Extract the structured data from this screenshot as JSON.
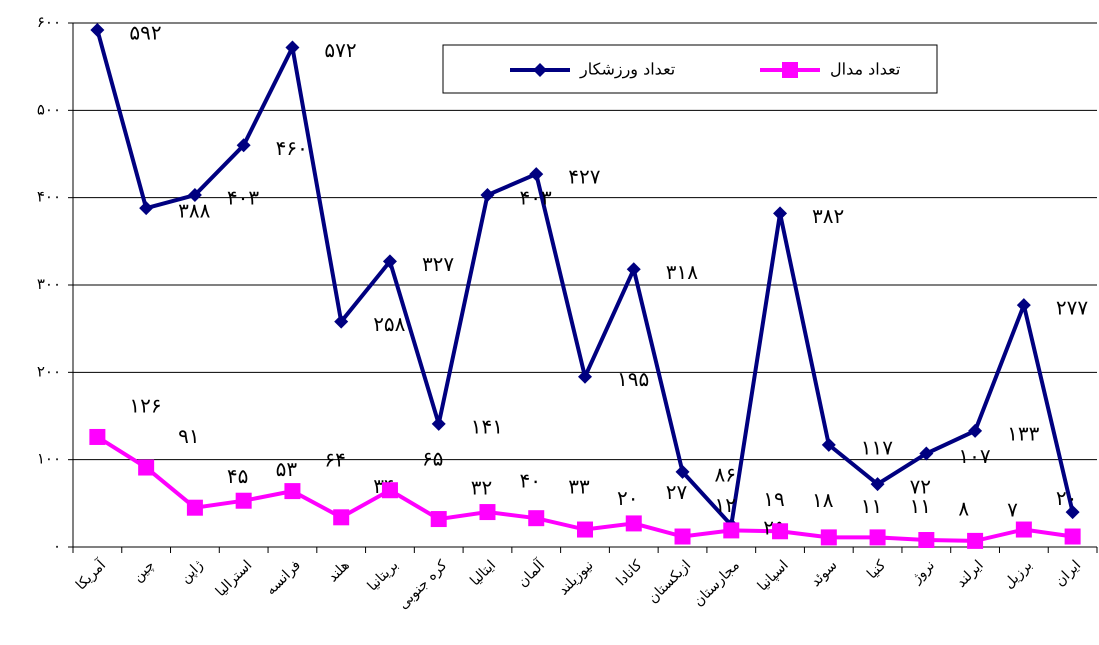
{
  "chart_data": {
    "type": "line",
    "categories": [
      "آمریکا",
      "چین",
      "ژاپن",
      "استرالیا",
      "فرانسه",
      "هلند",
      "بریتانیا",
      "کره جنوبی",
      "ایتالیا",
      "آلمان",
      "نیوزیلند",
      "کانادا",
      "ازبکستان",
      "مجارستان",
      "اسپانیا",
      "سوئد",
      "کنیا",
      "نروژ",
      "ایرلند",
      "برزیل",
      "ایران"
    ],
    "series": [
      {
        "name": "تعداد ورزشکار",
        "color": "#000080",
        "marker": "diamond",
        "values": [
          592,
          388,
          403,
          460,
          572,
          258,
          327,
          141,
          403,
          427,
          195,
          318,
          86,
          25,
          382,
          117,
          72,
          107,
          133,
          277,
          40
        ],
        "value_labels": [
          "۵۹۲",
          "۳۸۸",
          "۴۰۳",
          "۴۶۰",
          "۵۷۲",
          "۲۵۸",
          "۳۲۷",
          "۱۴۱",
          "۴۰۳",
          "۴۲۷",
          "۱۹۵",
          "۳۱۸",
          "۸۶",
          "۲۵",
          "۳۸۲",
          "۱۱۷",
          "۷۲",
          "۱۰۷",
          "۱۳۳",
          "۲۷۷",
          "۴۰"
        ]
      },
      {
        "name": "تعداد مدال",
        "color": "#ff00ff",
        "marker": "square",
        "values": [
          126,
          91,
          45,
          53,
          64,
          34,
          65,
          32,
          40,
          33,
          20,
          27,
          12,
          19,
          18,
          11,
          11,
          8,
          7,
          20,
          12
        ],
        "value_labels": [
          "۱۲۶",
          "۹۱",
          "۴۵",
          "۵۳",
          "۶۴",
          "۳۴",
          "۶۵",
          "۳۲",
          "۴۰",
          "۳۳",
          "۲۰",
          "۲۷",
          "۱۲",
          "۱۹",
          "۱۸",
          "۱۱",
          "۱۱",
          "۸",
          "۷",
          "۲۰",
          "۱۲"
        ]
      }
    ],
    "ylim": [
      0,
      600
    ],
    "yticks": [
      {
        "value": 0,
        "label": "۰"
      },
      {
        "value": 100,
        "label": "۱۰۰"
      },
      {
        "value": 200,
        "label": "۲۰۰"
      },
      {
        "value": 300,
        "label": "۳۰۰"
      },
      {
        "value": 400,
        "label": "۴۰۰"
      },
      {
        "value": 500,
        "label": "۵۰۰"
      },
      {
        "value": 600,
        "label": "۶۰۰"
      }
    ],
    "grid": true
  }
}
